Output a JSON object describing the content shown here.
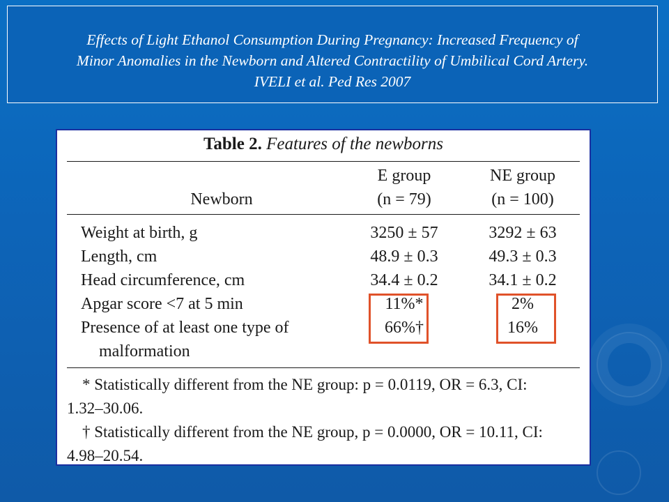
{
  "slide": {
    "title_lines": [
      "Effects of Light Ethanol Consumption During Pregnancy: Increased Frequency of",
      "Minor Anomalies in the Newborn and Altered Contractility of Umbilical Cord Artery.",
      "IVELI et al.   Ped Res 2007"
    ]
  },
  "table": {
    "caption_label": "Table 2.",
    "caption_text": "Features of the newborns",
    "col_header_newborn": "Newborn",
    "col_header_e": "E group",
    "col_header_e_n": "(n = 79)",
    "col_header_ne": "NE group",
    "col_header_ne_n": "(n = 100)",
    "rows": [
      {
        "label": "Weight at birth, g",
        "e": "3250 ± 57",
        "ne": "3292 ± 63"
      },
      {
        "label": "Length, cm",
        "e": "48.9 ± 0.3",
        "ne": "49.3 ± 0.3"
      },
      {
        "label": "Head circumference, cm",
        "e": "34.4 ± 0.2",
        "ne": "34.1 ± 0.2"
      },
      {
        "label": "Apgar score <7 at 5 min",
        "e": "11%*",
        "ne": "2%"
      },
      {
        "label": "Presence of at least one type of",
        "label2": "malformation",
        "e": "66%†",
        "ne": "16%"
      }
    ],
    "footnotes": [
      "* Statistically different from the NE group: p = 0.0119, OR = 6.3, CI:",
      "1.32–30.06.",
      "† Statistically different from the NE group, p = 0.0000, OR = 10.11, CI:",
      "4.98–20.54."
    ]
  },
  "colors": {
    "background": "#0d64b8",
    "highlight_box": "#e0522a",
    "table_border": "#1a2fa0"
  }
}
